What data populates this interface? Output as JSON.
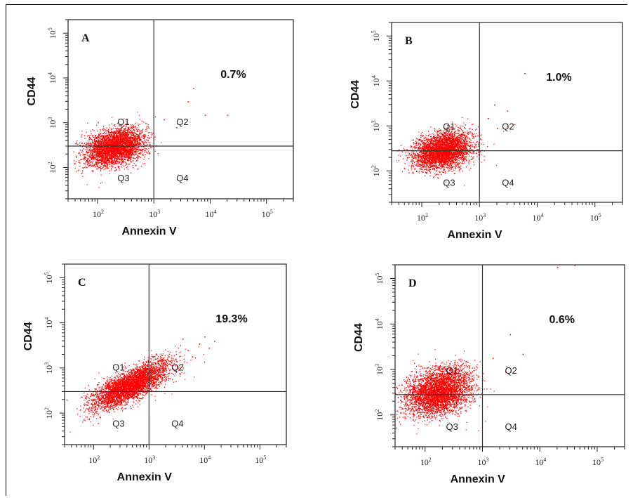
{
  "chart_data": [
    {
      "type": "scatter",
      "panel_label": "A",
      "xlabel": "Annexin V",
      "ylabel": "CD44",
      "x_scale": "log",
      "y_scale": "log",
      "xlim": [
        30,
        300000
      ],
      "ylim": [
        20,
        200000
      ],
      "x_ticks": [
        {
          "exp": "2",
          "value": 100
        },
        {
          "exp": "3",
          "value": 1000
        },
        {
          "exp": "4",
          "value": 10000
        },
        {
          "exp": "5",
          "value": 100000
        }
      ],
      "y_ticks": [
        {
          "exp": "2",
          "value": 100
        },
        {
          "exp": "3",
          "value": 1000
        },
        {
          "exp": "4",
          "value": 10000
        },
        {
          "exp": "5",
          "value": 100000
        }
      ],
      "gate": {
        "x": 1000,
        "y": 300
      },
      "quadrant_labels": {
        "Q1": "Q1",
        "Q2": "Q2",
        "Q3": "Q3",
        "Q4": "Q4"
      },
      "annotation": "0.7%",
      "q2_percent": 0.7,
      "point_color": "#ff0000",
      "cluster": {
        "center_x": 200,
        "center_y": 290,
        "spread_x": 0.25,
        "spread_y": 0.2,
        "corr": 0.3,
        "n": 3500
      },
      "extra_points": [
        [
          1500,
          1200
        ],
        [
          2500,
          800
        ],
        [
          4000,
          3000
        ],
        [
          8000,
          1500
        ],
        [
          5000,
          6000
        ],
        [
          20000,
          1500
        ]
      ]
    },
    {
      "type": "scatter",
      "panel_label": "B",
      "xlabel": "Annexin V",
      "ylabel": "CD44",
      "x_scale": "log",
      "y_scale": "log",
      "xlim": [
        30,
        300000
      ],
      "ylim": [
        20,
        200000
      ],
      "x_ticks": [
        {
          "exp": "2",
          "value": 100
        },
        {
          "exp": "3",
          "value": 1000
        },
        {
          "exp": "4",
          "value": 10000
        },
        {
          "exp": "5",
          "value": 100000
        }
      ],
      "y_ticks": [
        {
          "exp": "2",
          "value": 100
        },
        {
          "exp": "3",
          "value": 1000
        },
        {
          "exp": "4",
          "value": 10000
        },
        {
          "exp": "5",
          "value": 100000
        }
      ],
      "gate": {
        "x": 1000,
        "y": 280
      },
      "quadrant_labels": {
        "Q1": "Q1",
        "Q2": "Q2",
        "Q3": "Q3",
        "Q4": "Q4"
      },
      "annotation": "1.0%",
      "q2_percent": 1.0,
      "point_color": "#ff0000",
      "cluster": {
        "center_x": 230,
        "center_y": 290,
        "spread_x": 0.24,
        "spread_y": 0.2,
        "corr": 0.3,
        "n": 3500
      },
      "extra_points": [
        [
          1400,
          1500
        ],
        [
          2000,
          900
        ],
        [
          3000,
          2200
        ],
        [
          4000,
          1100
        ],
        [
          6000,
          15000
        ],
        [
          1800,
          3000
        ]
      ]
    },
    {
      "type": "scatter",
      "panel_label": "C",
      "xlabel": "Annexin V",
      "ylabel": "CD44",
      "x_scale": "log",
      "y_scale": "log",
      "xlim": [
        30,
        300000
      ],
      "ylim": [
        20,
        200000
      ],
      "x_ticks": [
        {
          "exp": "2",
          "value": 100
        },
        {
          "exp": "3",
          "value": 1000
        },
        {
          "exp": "4",
          "value": 10000
        },
        {
          "exp": "5",
          "value": 100000
        }
      ],
      "y_ticks": [
        {
          "exp": "2",
          "value": 100
        },
        {
          "exp": "3",
          "value": 1000
        },
        {
          "exp": "4",
          "value": 10000
        },
        {
          "exp": "5",
          "value": 100000
        }
      ],
      "gate": {
        "x": 1000,
        "y": 300
      },
      "quadrant_labels": {
        "Q1": "Q1",
        "Q2": "Q2",
        "Q3": "Q3",
        "Q4": "Q4"
      },
      "annotation": "19.3%",
      "q2_percent": 19.3,
      "point_color": "#ff0000",
      "cluster": {
        "center_x": 450,
        "center_y": 420,
        "spread_x": 0.33,
        "spread_y": 0.25,
        "corr": 0.75,
        "n": 3800
      },
      "extra_points": [
        [
          3000,
          1600
        ],
        [
          5000,
          2500
        ],
        [
          8000,
          3500
        ],
        [
          12000,
          2800
        ],
        [
          4000,
          4500
        ],
        [
          6000,
          1800
        ],
        [
          10000,
          5000
        ],
        [
          15000,
          4000
        ]
      ]
    },
    {
      "type": "scatter",
      "panel_label": "D",
      "xlabel": "Annexin V",
      "ylabel": "CD44",
      "x_scale": "log",
      "y_scale": "log",
      "xlim": [
        30,
        300000
      ],
      "ylim": [
        20,
        200000
      ],
      "x_ticks": [
        {
          "exp": "2",
          "value": 100
        },
        {
          "exp": "3",
          "value": 1000
        },
        {
          "exp": "4",
          "value": 10000
        },
        {
          "exp": "5",
          "value": 100000
        }
      ],
      "y_ticks": [
        {
          "exp": "2",
          "value": 100
        },
        {
          "exp": "3",
          "value": 1000
        },
        {
          "exp": "4",
          "value": 10000
        },
        {
          "exp": "5",
          "value": 100000
        }
      ],
      "gate": {
        "x": 1000,
        "y": 280
      },
      "quadrant_labels": {
        "Q1": "Q1",
        "Q2": "Q2",
        "Q3": "Q3",
        "Q4": "Q4"
      },
      "annotation": "0.6%",
      "q2_percent": 0.6,
      "point_color": "#ff0000",
      "cluster": {
        "center_x": 170,
        "center_y": 330,
        "spread_x": 0.27,
        "spread_y": 0.25,
        "corr": 0.3,
        "n": 3800
      },
      "extra_points": [
        [
          1500,
          1800
        ],
        [
          2500,
          900
        ],
        [
          3000,
          6000
        ],
        [
          5000,
          2200
        ],
        [
          20000,
          180000
        ],
        [
          40000,
          200000
        ]
      ]
    }
  ]
}
